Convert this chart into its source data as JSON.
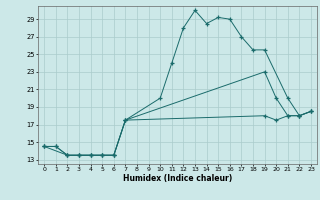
{
  "xlabel": "Humidex (Indice chaleur)",
  "background_color": "#cce8e8",
  "grid_color": "#aacccc",
  "line_color": "#1a6b6b",
  "line1_x": [
    0,
    1,
    2,
    3,
    4,
    5,
    6,
    7,
    10,
    11,
    12,
    13,
    14,
    15,
    16,
    17,
    18,
    19,
    21,
    22,
    23
  ],
  "line1_y": [
    14.5,
    14.5,
    13.5,
    13.5,
    13.5,
    13.5,
    13.5,
    17.5,
    20.0,
    24.0,
    28.0,
    30.0,
    28.5,
    29.2,
    29.0,
    27.0,
    25.5,
    25.5,
    20.0,
    18.0,
    18.5
  ],
  "line2_x": [
    0,
    2,
    3,
    4,
    5,
    6,
    7,
    19,
    20,
    21,
    22,
    23
  ],
  "line2_y": [
    14.5,
    13.5,
    13.5,
    13.5,
    13.5,
    13.5,
    17.5,
    23.0,
    20.0,
    18.0,
    18.0,
    18.5
  ],
  "line3_x": [
    0,
    1,
    2,
    3,
    4,
    5,
    6,
    7,
    19,
    20,
    21,
    22,
    23
  ],
  "line3_y": [
    14.5,
    14.5,
    13.5,
    13.5,
    13.5,
    13.5,
    13.5,
    17.5,
    18.0,
    17.5,
    18.0,
    18.0,
    18.5
  ],
  "xlim": [
    -0.5,
    23.5
  ],
  "ylim": [
    12.5,
    30.5
  ],
  "yticks": [
    13,
    15,
    17,
    19,
    21,
    23,
    25,
    27,
    29
  ],
  "xticks": [
    0,
    1,
    2,
    3,
    4,
    5,
    6,
    7,
    8,
    9,
    10,
    11,
    12,
    13,
    14,
    15,
    16,
    17,
    18,
    19,
    20,
    21,
    22,
    23
  ]
}
